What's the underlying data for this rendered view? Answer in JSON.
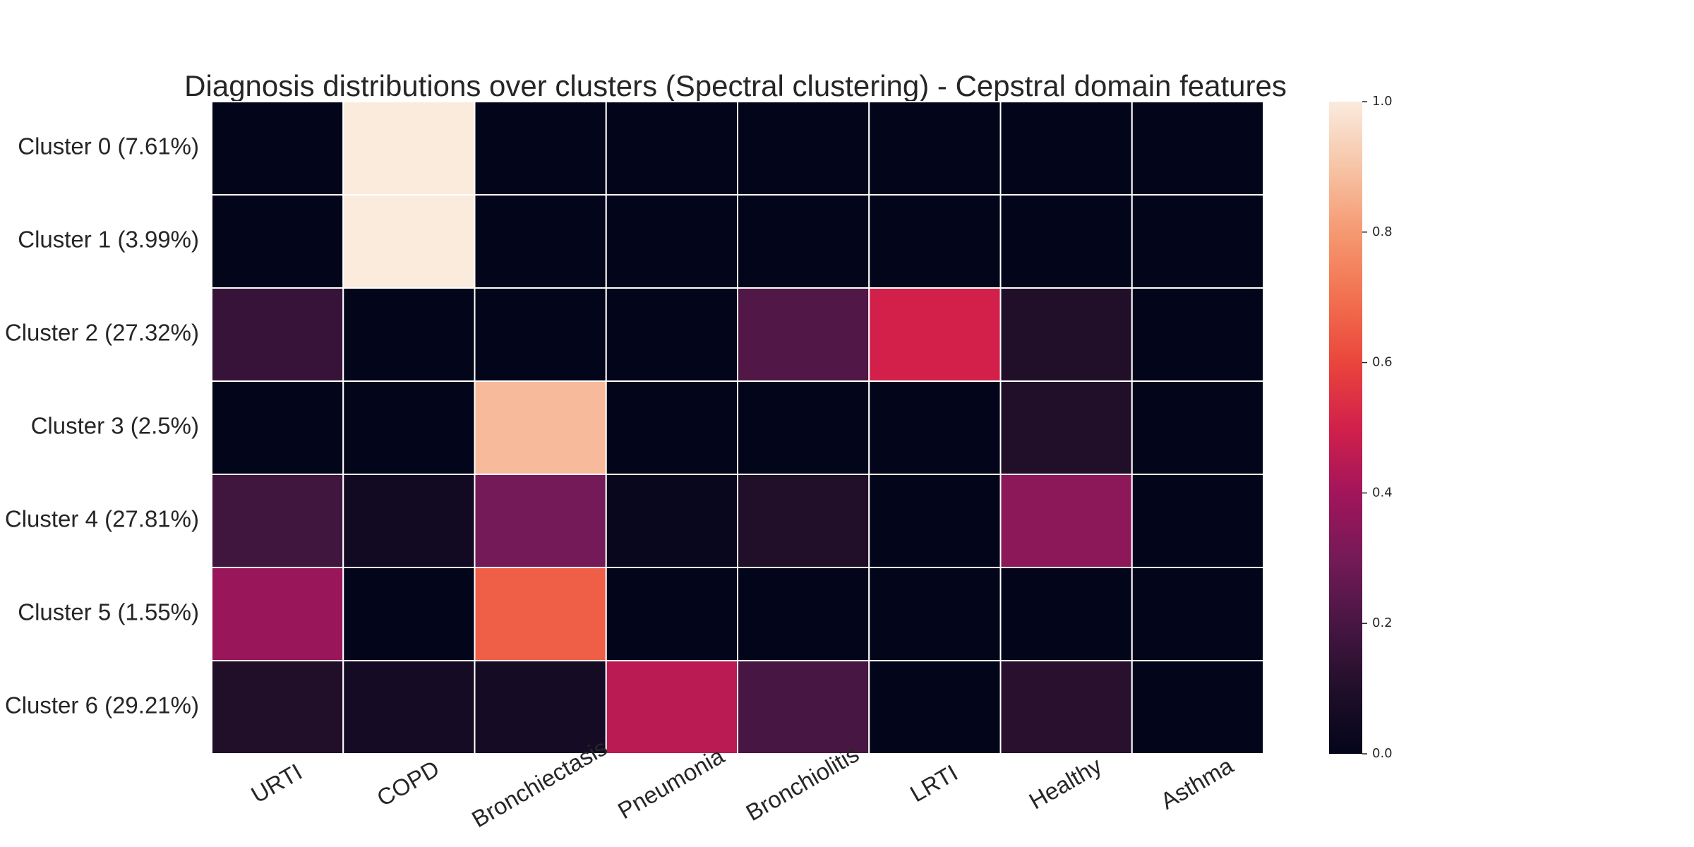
{
  "chart_data": {
    "type": "heatmap",
    "title": "Diagnosis distributions over clusters (Spectral clustering) - Cepstral domain features",
    "rows": [
      "Cluster 0 (7.61%)",
      "Cluster 1 (3.99%)",
      "Cluster 2 (27.32%)",
      "Cluster 3 (2.5%)",
      "Cluster 4 (27.81%)",
      "Cluster 5 (1.55%)",
      "Cluster 6 (29.21%)"
    ],
    "columns": [
      "URTI",
      "COPD",
      "Bronchiectasis",
      "Pneumonia",
      "Bronchiolitis",
      "LRTI",
      "Healthy",
      "Asthma"
    ],
    "values": [
      [
        0.0,
        1.0,
        0.0,
        0.0,
        0.0,
        0.0,
        0.0,
        0.0
      ],
      [
        0.0,
        1.0,
        0.0,
        0.0,
        0.0,
        0.0,
        0.0,
        0.0
      ],
      [
        0.16,
        0.0,
        0.0,
        0.0,
        0.22,
        0.5,
        0.1,
        0.0
      ],
      [
        0.0,
        0.0,
        0.88,
        0.0,
        0.0,
        0.0,
        0.1,
        0.0
      ],
      [
        0.18,
        0.05,
        0.3,
        0.02,
        0.1,
        0.0,
        0.35,
        0.0
      ],
      [
        0.38,
        0.0,
        0.66,
        0.0,
        0.0,
        0.0,
        0.0,
        0.0
      ],
      [
        0.1,
        0.06,
        0.06,
        0.45,
        0.2,
        0.0,
        0.12,
        0.0
      ]
    ],
    "colorbar": {
      "vmin": 0.0,
      "vmax": 1.0,
      "ticks": [
        "0.0",
        "0.2",
        "0.4",
        "0.6",
        "0.8",
        "1.0"
      ],
      "colormap": "rocket"
    },
    "grid_line_color": "#ffffff",
    "xtick_rotation_deg": -30
  }
}
